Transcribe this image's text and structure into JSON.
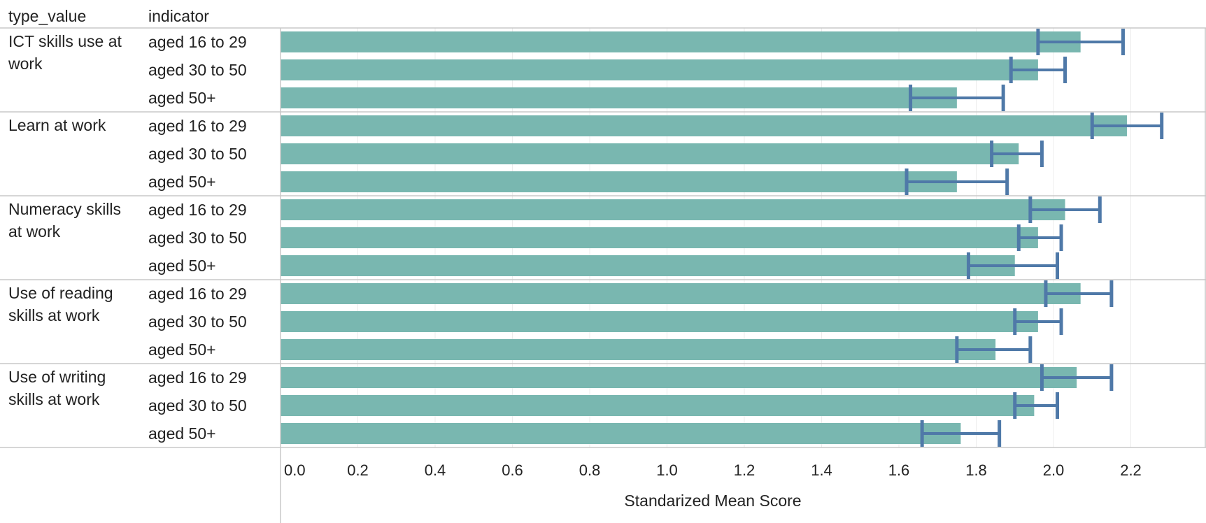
{
  "chart_data": {
    "type": "bar",
    "orientation": "horizontal",
    "row_header_labels": [
      "type_value",
      "indicator"
    ],
    "xlabel": "Standarized Mean Score",
    "xlim": [
      0,
      2.4
    ],
    "xticks": [
      0.0,
      0.2,
      0.4,
      0.6,
      0.8,
      1.0,
      1.2,
      1.4,
      1.6,
      1.8,
      2.0,
      2.2
    ],
    "xtick_labels": [
      "0.0",
      "0.2",
      "0.4",
      "0.6",
      "0.8",
      "1.0",
      "1.2",
      "1.4",
      "1.6",
      "1.8",
      "2.0",
      "2.2"
    ],
    "grid": true,
    "bar_color": "#79b7b0",
    "error_bar_color": "#4f79a8",
    "groups": [
      {
        "label_lines": [
          "ICT skills use at",
          "work"
        ],
        "rows": [
          {
            "indicator": "aged 16 to 29",
            "value": 2.07,
            "low": 1.96,
            "high": 2.18
          },
          {
            "indicator": "aged 30 to 50",
            "value": 1.96,
            "low": 1.89,
            "high": 2.03
          },
          {
            "indicator": "aged 50+",
            "value": 1.75,
            "low": 1.63,
            "high": 1.87
          }
        ]
      },
      {
        "label_lines": [
          "Learn at work"
        ],
        "rows": [
          {
            "indicator": "aged 16 to 29",
            "value": 2.19,
            "low": 2.1,
            "high": 2.28
          },
          {
            "indicator": "aged 30 to 50",
            "value": 1.91,
            "low": 1.84,
            "high": 1.97
          },
          {
            "indicator": "aged 50+",
            "value": 1.75,
            "low": 1.62,
            "high": 1.88
          }
        ]
      },
      {
        "label_lines": [
          "Numeracy skills",
          "at work"
        ],
        "rows": [
          {
            "indicator": "aged 16 to 29",
            "value": 2.03,
            "low": 1.94,
            "high": 2.12
          },
          {
            "indicator": "aged 30 to 50",
            "value": 1.96,
            "low": 1.91,
            "high": 2.02
          },
          {
            "indicator": "aged 50+",
            "value": 1.9,
            "low": 1.78,
            "high": 2.01
          }
        ]
      },
      {
        "label_lines": [
          "Use of reading",
          "skills at work"
        ],
        "rows": [
          {
            "indicator": "aged 16 to 29",
            "value": 2.07,
            "low": 1.98,
            "high": 2.15
          },
          {
            "indicator": "aged 30 to 50",
            "value": 1.96,
            "low": 1.9,
            "high": 2.02
          },
          {
            "indicator": "aged 50+",
            "value": 1.85,
            "low": 1.75,
            "high": 1.94
          }
        ]
      },
      {
        "label_lines": [
          "Use of writing",
          "skills at work"
        ],
        "rows": [
          {
            "indicator": "aged 16 to 29",
            "value": 2.06,
            "low": 1.97,
            "high": 2.15
          },
          {
            "indicator": "aged 30 to 50",
            "value": 1.95,
            "low": 1.9,
            "high": 2.01
          },
          {
            "indicator": "aged 50+",
            "value": 1.76,
            "low": 1.66,
            "high": 1.86
          }
        ]
      }
    ]
  }
}
